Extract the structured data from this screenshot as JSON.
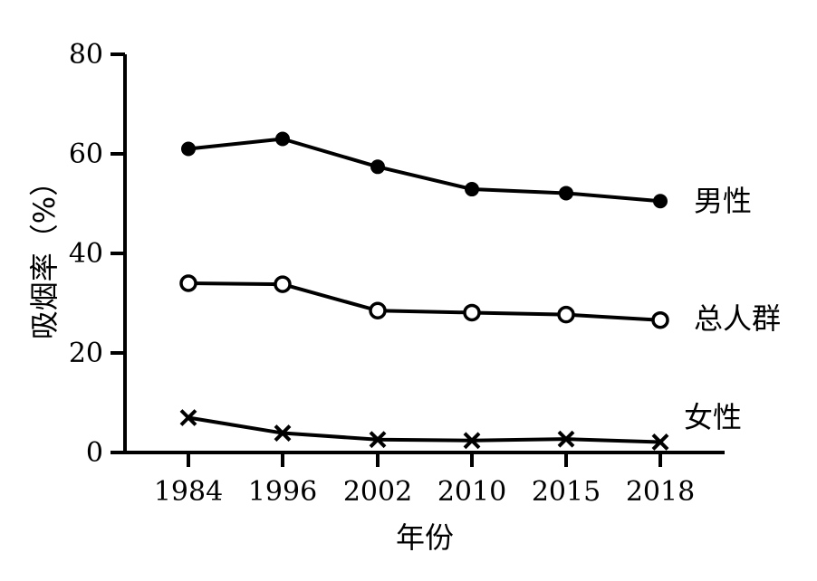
{
  "chart_data": {
    "type": "line",
    "xlabel": "年份",
    "ylabel": "吸烟率（%）",
    "categories": [
      "1984",
      "1996",
      "2002",
      "2010",
      "2015",
      "2018"
    ],
    "yticks": [
      "0",
      "20",
      "40",
      "60",
      "80"
    ],
    "ylim": [
      0,
      80
    ],
    "grid": false,
    "legend": "series labels placed at right end of lines",
    "series": [
      {
        "name": "男性",
        "marker": "filled-circle",
        "values": [
          61.0,
          63.0,
          57.4,
          52.9,
          52.1,
          50.5
        ]
      },
      {
        "name": "总人群",
        "marker": "open-circle",
        "values": [
          34.0,
          33.8,
          28.5,
          28.1,
          27.7,
          26.6
        ]
      },
      {
        "name": "女性",
        "marker": "x",
        "values": [
          7.0,
          3.9,
          2.6,
          2.4,
          2.7,
          2.1
        ]
      }
    ]
  }
}
